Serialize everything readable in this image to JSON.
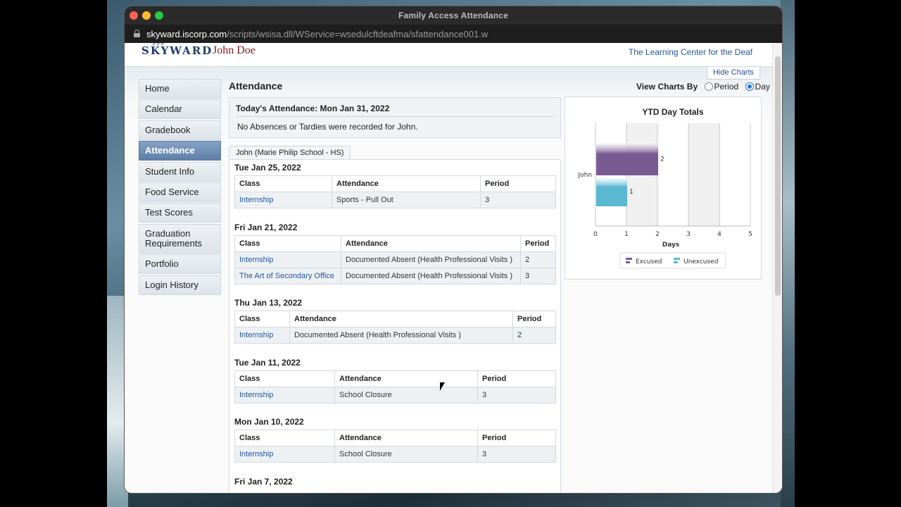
{
  "window": {
    "title": "Family Access Attendance",
    "url_host": "skyward.iscorp.com",
    "url_path": "/scripts/wsisa.dll/WService=wsedulcftdeafma/sfattendance001.w"
  },
  "header": {
    "logo": "SKYWARD",
    "user_name": "John Doe",
    "school_name": "The Learning Center for the Deaf",
    "hide_charts": "Hide Charts"
  },
  "sidebar": {
    "items": [
      {
        "label": "Home"
      },
      {
        "label": "Calendar"
      },
      {
        "label": "Gradebook"
      },
      {
        "label": "Attendance"
      },
      {
        "label": "Student Info"
      },
      {
        "label": "Food Service"
      },
      {
        "label": "Test Scores"
      },
      {
        "label": "Graduation Requirements"
      },
      {
        "label": "Portfolio"
      },
      {
        "label": "Login History"
      }
    ]
  },
  "main": {
    "title": "Attendance",
    "view_charts_label": "View Charts By",
    "view_option_period": "Period",
    "view_option_day": "Day",
    "today_title": "Today's Attendance: Mon Jan 31, 2022",
    "today_message": "No Absences or Tardies were recorded for John.",
    "student_tab": "John (Marie Philip School - HS)",
    "col_class": "Class",
    "col_attendance": "Attendance",
    "col_period": "Period",
    "days": [
      {
        "date": "Tue Jan 25, 2022",
        "rows": [
          {
            "class": "Internship",
            "attendance": "Sports - Pull Out",
            "period": "3"
          }
        ]
      },
      {
        "date": "Fri Jan 21, 2022",
        "rows": [
          {
            "class": "Internship",
            "attendance": "Documented Absent (Health Professional Visits )",
            "period": "2"
          },
          {
            "class": "The Art of Secondary Office",
            "attendance": "Documented Absent (Health Professional Visits )",
            "period": "3"
          }
        ]
      },
      {
        "date": "Thu Jan 13, 2022",
        "rows": [
          {
            "class": "Internship",
            "attendance": "Documented Absent (Health Professional Visits )",
            "period": "2"
          }
        ]
      },
      {
        "date": "Tue Jan 11, 2022",
        "rows": [
          {
            "class": "Internship",
            "attendance": "School Closure",
            "period": "3"
          }
        ]
      },
      {
        "date": "Mon Jan 10, 2022",
        "rows": [
          {
            "class": "Internship",
            "attendance": "School Closure",
            "period": "3"
          }
        ]
      },
      {
        "date": "Fri Jan 7, 2022",
        "rows": []
      }
    ]
  },
  "chart_data": {
    "type": "bar",
    "orientation": "horizontal",
    "title": "YTD Day Totals",
    "xlabel": "Days",
    "categories": [
      "John"
    ],
    "series": [
      {
        "name": "Excused",
        "values": [
          2
        ],
        "color": "#7a5a93"
      },
      {
        "name": "Unexcused",
        "values": [
          1
        ],
        "color": "#5ab8d0"
      }
    ],
    "xlim": [
      0,
      5
    ],
    "x_ticks": [
      "0",
      "1",
      "2",
      "3",
      "4",
      "5"
    ],
    "legend": "bottom"
  }
}
